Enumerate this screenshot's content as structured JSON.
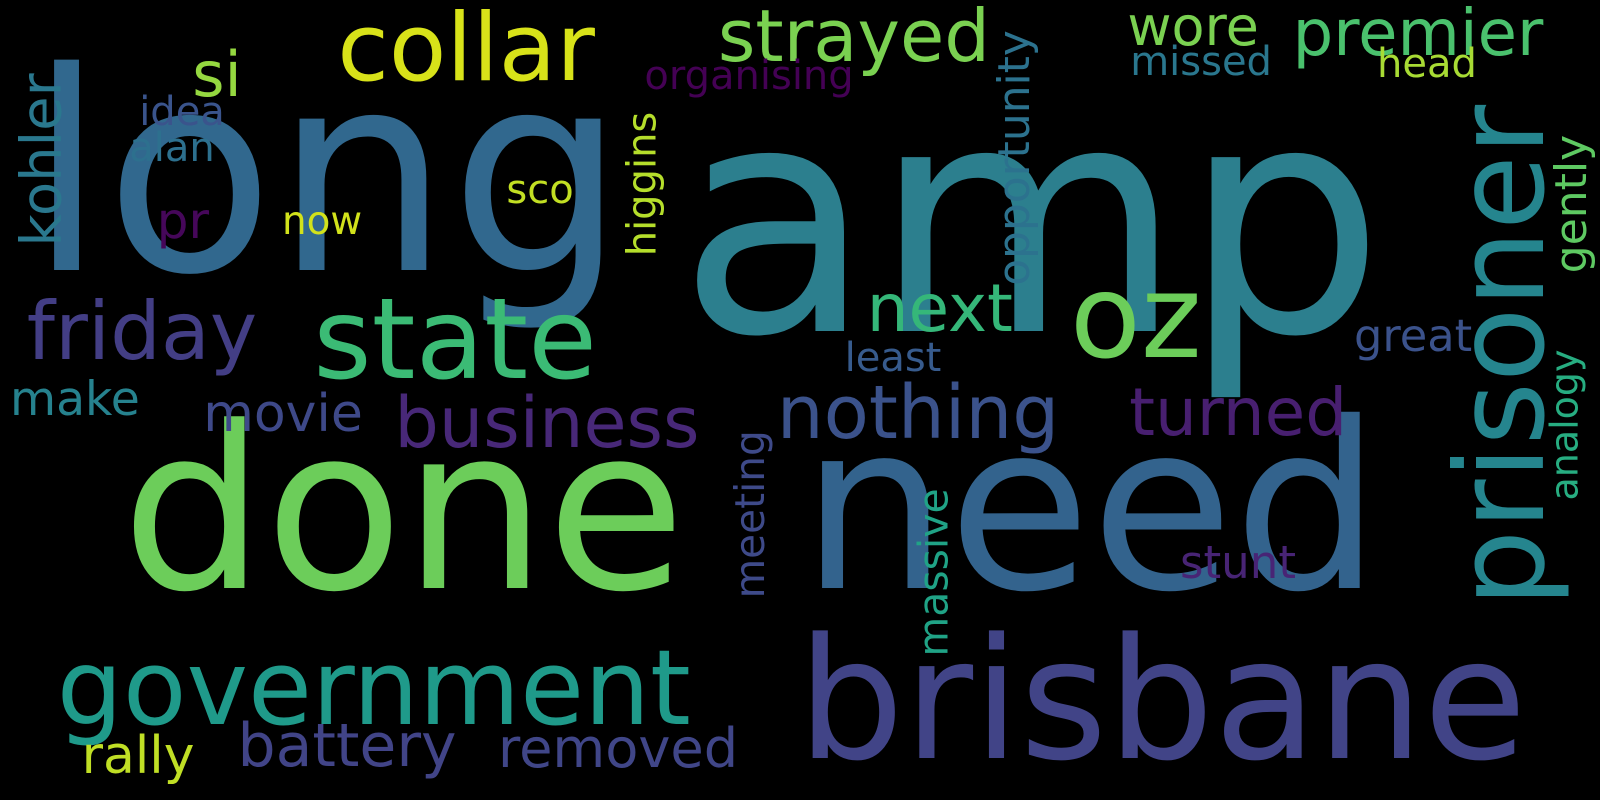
{
  "words": [
    {
      "text": "long",
      "color": "#31688e",
      "rotated": false
    },
    {
      "text": "amp",
      "color": "#2c7f8e",
      "rotated": false
    },
    {
      "text": "done",
      "color": "#6ccd5a",
      "rotated": false
    },
    {
      "text": "need",
      "color": "#33638d",
      "rotated": false
    },
    {
      "text": "brisbane",
      "color": "#414487",
      "rotated": false
    },
    {
      "text": "government",
      "color": "#1f9a8a",
      "rotated": false
    },
    {
      "text": "prisoner",
      "color": "#25858e",
      "rotated": true
    },
    {
      "text": "collar",
      "color": "#d8e219",
      "rotated": false
    },
    {
      "text": "oz",
      "color": "#6ccd5a",
      "rotated": false
    },
    {
      "text": "state",
      "color": "#3bbb75",
      "rotated": false
    },
    {
      "text": "strayed",
      "color": "#7ad151",
      "rotated": false
    },
    {
      "text": "wore",
      "color": "#7ad151",
      "rotated": false
    },
    {
      "text": "premier",
      "color": "#4ac16d",
      "rotated": false
    },
    {
      "text": "friday",
      "color": "#433e85",
      "rotated": false
    },
    {
      "text": "nothing",
      "color": "#3b528b",
      "rotated": false
    },
    {
      "text": "business",
      "color": "#482878",
      "rotated": false
    },
    {
      "text": "turned",
      "color": "#481f70",
      "rotated": false
    },
    {
      "text": "next",
      "color": "#35b779",
      "rotated": false
    },
    {
      "text": "si",
      "color": "#95d840",
      "rotated": false
    },
    {
      "text": "kohler",
      "color": "#2a788e",
      "rotated": true
    },
    {
      "text": "make",
      "color": "#26828e",
      "rotated": false
    },
    {
      "text": "movie",
      "color": "#3e4989",
      "rotated": false
    },
    {
      "text": "battery",
      "color": "#414487",
      "rotated": false
    },
    {
      "text": "removed",
      "color": "#404688",
      "rotated": false
    },
    {
      "text": "pr",
      "color": "#46075a",
      "rotated": false
    },
    {
      "text": "organising",
      "color": "#440154",
      "rotated": false
    },
    {
      "text": "opportunity",
      "color": "#2c728e",
      "rotated": true
    },
    {
      "text": "missed",
      "color": "#2a778e",
      "rotated": false
    },
    {
      "text": "head",
      "color": "#a8db34",
      "rotated": false
    },
    {
      "text": "idea",
      "color": "#3a548c",
      "rotated": false
    },
    {
      "text": "alan",
      "color": "#2d708e",
      "rotated": false
    },
    {
      "text": "sco",
      "color": "#c2df23",
      "rotated": false
    },
    {
      "text": "now",
      "color": "#d2e21b",
      "rotated": false
    },
    {
      "text": "higgins",
      "color": "#b5de2b",
      "rotated": true
    },
    {
      "text": "gently",
      "color": "#5ec962",
      "rotated": true
    },
    {
      "text": "great",
      "color": "#3b528b",
      "rotated": false
    },
    {
      "text": "least",
      "color": "#375b8d",
      "rotated": false
    },
    {
      "text": "analogy",
      "color": "#27ad81",
      "rotated": true
    },
    {
      "text": "meeting",
      "color": "#3e4a89",
      "rotated": true
    },
    {
      "text": "massive",
      "color": "#20a386",
      "rotated": true
    },
    {
      "text": "stunt",
      "color": "#482475",
      "rotated": false
    },
    {
      "text": "rally",
      "color": "#c0df25",
      "rotated": false
    }
  ]
}
